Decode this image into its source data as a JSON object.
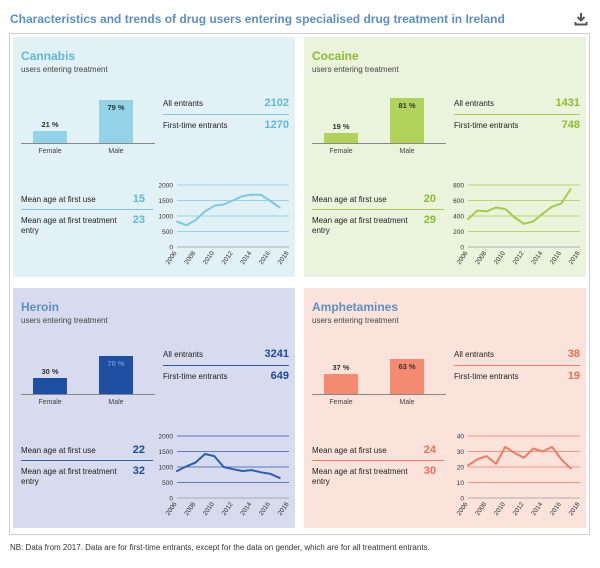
{
  "title": "Characteristics and trends of drug users entering specialised drug treatment in Ireland",
  "icons": {
    "download": "download-icon"
  },
  "note": "NB: Data from 2017. Data are for first-time entrants, except for the data on gender, which are for all treatment entrants.",
  "labels": {
    "subtitle": "users entering treatment",
    "female": "Female",
    "male": "Male",
    "all_entrants": "All entrants",
    "first_time_entrants": "First-time entrants",
    "mean_age_first_use": "Mean age at first use",
    "mean_age_first_treatment_line1": "Mean age at first treatment",
    "mean_age_first_treatment_line2": "entry"
  },
  "chart_data": [
    {
      "type": "line",
      "drug": "Cannabis",
      "colors": {
        "bg": "#e1f1f6",
        "accent": "#7cc9e3",
        "bar": "#93d3e8",
        "text": "#5fb8d8",
        "title": "#5fb8d8"
      },
      "gender": {
        "female_pct": 21,
        "male_pct": 79,
        "female_label": "21 %",
        "male_label": "79 %"
      },
      "all_entrants": "2102",
      "first_time_entrants": "1270",
      "mean_age_first_use": "15",
      "mean_age_first_treatment": "23",
      "x": [
        2006,
        2007,
        2008,
        2009,
        2010,
        2011,
        2012,
        2013,
        2014,
        2015,
        2016,
        2017
      ],
      "y": [
        820,
        700,
        870,
        1150,
        1330,
        1370,
        1500,
        1640,
        1690,
        1680,
        1490,
        1270
      ],
      "ylim": [
        0,
        2000
      ],
      "yticks": [
        0,
        500,
        1000,
        1500,
        2000
      ],
      "xticks": [
        2006,
        2008,
        2010,
        2012,
        2014,
        2016,
        2018
      ]
    },
    {
      "type": "line",
      "drug": "Cocaine",
      "colors": {
        "bg": "#eaf4dc",
        "accent": "#a6cc4a",
        "bar": "#b1d35c",
        "text": "#8cbc2c",
        "title": "#8cbc2c"
      },
      "gender": {
        "female_pct": 19,
        "male_pct": 81,
        "female_label": "19 %",
        "male_label": "81 %"
      },
      "all_entrants": "1431",
      "first_time_entrants": "748",
      "mean_age_first_use": "20",
      "mean_age_first_treatment": "29",
      "x": [
        2006,
        2007,
        2008,
        2009,
        2010,
        2011,
        2012,
        2013,
        2014,
        2015,
        2016,
        2017
      ],
      "y": [
        360,
        470,
        460,
        510,
        490,
        380,
        300,
        330,
        430,
        520,
        560,
        748
      ],
      "ylim": [
        0,
        800
      ],
      "yticks": [
        0,
        200,
        400,
        600,
        800
      ],
      "xticks": [
        2006,
        2008,
        2010,
        2012,
        2014,
        2016,
        2018
      ]
    },
    {
      "type": "line",
      "drug": "Heroin",
      "colors": {
        "bg": "#d7dbed",
        "accent": "#2b5fb0",
        "bar": "#1d4fa3",
        "text": "#1a4a9e",
        "title": "#5b8fc6"
      },
      "gender": {
        "female_pct": 30,
        "male_pct": 70,
        "female_label": "30 %",
        "male_label": "70 %"
      },
      "all_entrants": "3241",
      "first_time_entrants": "649",
      "mean_age_first_use": "22",
      "mean_age_first_treatment": "32",
      "x": [
        2006,
        2007,
        2008,
        2009,
        2010,
        2011,
        2012,
        2013,
        2014,
        2015,
        2016,
        2017
      ],
      "y": [
        870,
        1020,
        1150,
        1420,
        1350,
        1000,
        930,
        870,
        900,
        830,
        780,
        649
      ],
      "ylim": [
        0,
        2000
      ],
      "yticks": [
        0,
        500,
        1000,
        1500,
        2000
      ],
      "xticks": [
        2006,
        2008,
        2010,
        2012,
        2014,
        2016,
        2018
      ]
    },
    {
      "type": "line",
      "drug": "Amphetamines",
      "colors": {
        "bg": "#fbe3db",
        "accent": "#ef7c60",
        "bar": "#f48a70",
        "text": "#ee6e52",
        "title": "#5b8fc6"
      },
      "gender": {
        "female_pct": 37,
        "male_pct": 63,
        "female_label": "37 %",
        "male_label": "63 %"
      },
      "all_entrants": "38",
      "first_time_entrants": "19",
      "mean_age_first_use": "24",
      "mean_age_first_treatment": "30",
      "x": [
        2006,
        2007,
        2008,
        2009,
        2010,
        2011,
        2012,
        2013,
        2014,
        2015,
        2016,
        2017
      ],
      "y": [
        21,
        25,
        27,
        22,
        33,
        29,
        26,
        32,
        30,
        33,
        25,
        19
      ],
      "ylim": [
        0,
        40
      ],
      "yticks": [
        0,
        10,
        20,
        30,
        40
      ],
      "xticks": [
        2006,
        2008,
        2010,
        2012,
        2014,
        2016,
        2018
      ]
    }
  ]
}
